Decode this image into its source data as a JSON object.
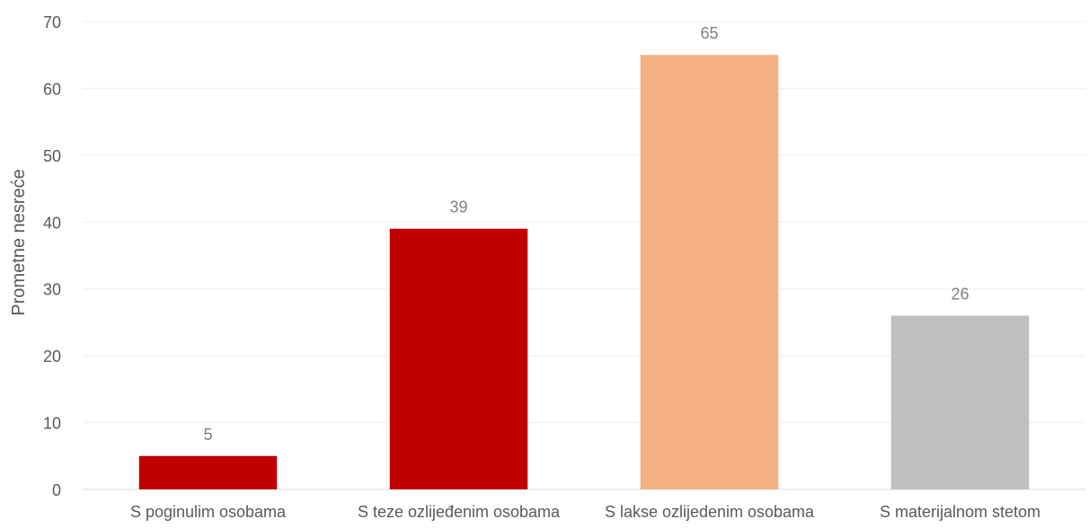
{
  "chart_data": {
    "type": "bar",
    "title": "",
    "xlabel": "",
    "ylabel": "Prometne nesreće",
    "categories": [
      "S poginulim osobama",
      "S teze ozlijeđenim osobama",
      "S lakse ozlijedenim osobama",
      "S materijalnom stetom"
    ],
    "values": [
      5,
      39,
      65,
      26
    ],
    "data_labels": [
      "5",
      "39",
      "65",
      "26"
    ],
    "colors": [
      "#C00000",
      "#C00000",
      "#F4B183",
      "#BFBFBF"
    ],
    "ylim": [
      0,
      70
    ],
    "yticks": [
      0,
      10,
      20,
      30,
      40,
      50,
      60,
      70
    ],
    "ytick_labels": [
      "0",
      "10",
      "20",
      "30",
      "40",
      "50",
      "60",
      "70"
    ],
    "grid": true,
    "legend": "none"
  }
}
